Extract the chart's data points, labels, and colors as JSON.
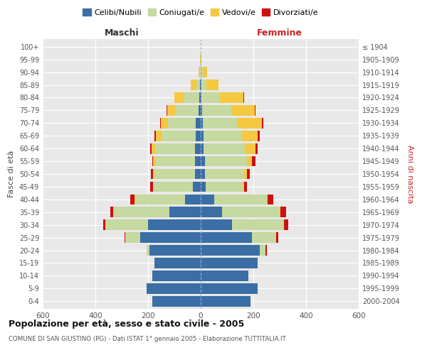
{
  "age_groups": [
    "0-4",
    "5-9",
    "10-14",
    "15-19",
    "20-24",
    "25-29",
    "30-34",
    "35-39",
    "40-44",
    "45-49",
    "50-54",
    "55-59",
    "60-64",
    "65-69",
    "70-74",
    "75-79",
    "80-84",
    "85-89",
    "90-94",
    "95-99",
    "100+"
  ],
  "birth_years": [
    "2000-2004",
    "1995-1999",
    "1990-1994",
    "1985-1989",
    "1980-1984",
    "1975-1979",
    "1970-1974",
    "1965-1969",
    "1960-1964",
    "1955-1959",
    "1950-1954",
    "1945-1949",
    "1940-1944",
    "1935-1939",
    "1930-1934",
    "1925-1929",
    "1920-1924",
    "1915-1919",
    "1910-1914",
    "1905-1909",
    "≤ 1904"
  ],
  "colors": {
    "celibe": "#3a6ea5",
    "coniugato": "#c5d9a0",
    "vedovo": "#f5c842",
    "divorziato": "#cc1111"
  },
  "maschi": {
    "celibe": [
      185,
      205,
      185,
      175,
      195,
      230,
      200,
      120,
      60,
      30,
      22,
      22,
      22,
      20,
      18,
      8,
      5,
      2,
      0,
      0,
      0
    ],
    "coniugato": [
      0,
      0,
      0,
      2,
      10,
      55,
      160,
      210,
      190,
      150,
      155,
      150,
      150,
      130,
      105,
      90,
      60,
      15,
      3,
      1,
      0
    ],
    "vedovo": [
      0,
      0,
      0,
      0,
      0,
      2,
      2,
      2,
      2,
      2,
      5,
      8,
      15,
      20,
      28,
      30,
      35,
      20,
      5,
      1,
      0
    ],
    "divorziato": [
      0,
      0,
      0,
      0,
      0,
      2,
      8,
      12,
      15,
      10,
      8,
      5,
      5,
      5,
      2,
      2,
      0,
      0,
      0,
      0,
      0
    ]
  },
  "femmine": {
    "nubile": [
      190,
      215,
      180,
      215,
      225,
      195,
      120,
      80,
      50,
      20,
      15,
      15,
      12,
      10,
      8,
      5,
      2,
      2,
      0,
      0,
      0
    ],
    "coniugata": [
      0,
      0,
      0,
      2,
      20,
      90,
      195,
      220,
      200,
      140,
      150,
      160,
      155,
      145,
      130,
      110,
      70,
      20,
      8,
      2,
      0
    ],
    "vedova": [
      0,
      0,
      0,
      0,
      0,
      2,
      2,
      3,
      5,
      5,
      12,
      20,
      40,
      60,
      95,
      90,
      90,
      45,
      15,
      2,
      0
    ],
    "divorziata": [
      0,
      0,
      0,
      0,
      5,
      8,
      15,
      20,
      20,
      10,
      10,
      12,
      8,
      8,
      5,
      2,
      2,
      0,
      0,
      0,
      0
    ]
  },
  "title": "Popolazione per età, sesso e stato civile - 2005",
  "subtitle": "COMUNE DI SAN GIUSTINO (PG) - Dati ISTAT 1° gennaio 2005 - Elaborazione TUTTITALIA.IT",
  "xlabel_left": "Maschi",
  "xlabel_right": "Femmine",
  "ylabel_left": "Fasce di età",
  "ylabel_right": "Anni di nascita",
  "xlim": 600,
  "legend_labels": [
    "Celibi/Nubili",
    "Coniugati/e",
    "Vedovi/e",
    "Divorziati/e"
  ],
  "bg_color": "#e8e8e8",
  "grid_color": "#ffffff"
}
